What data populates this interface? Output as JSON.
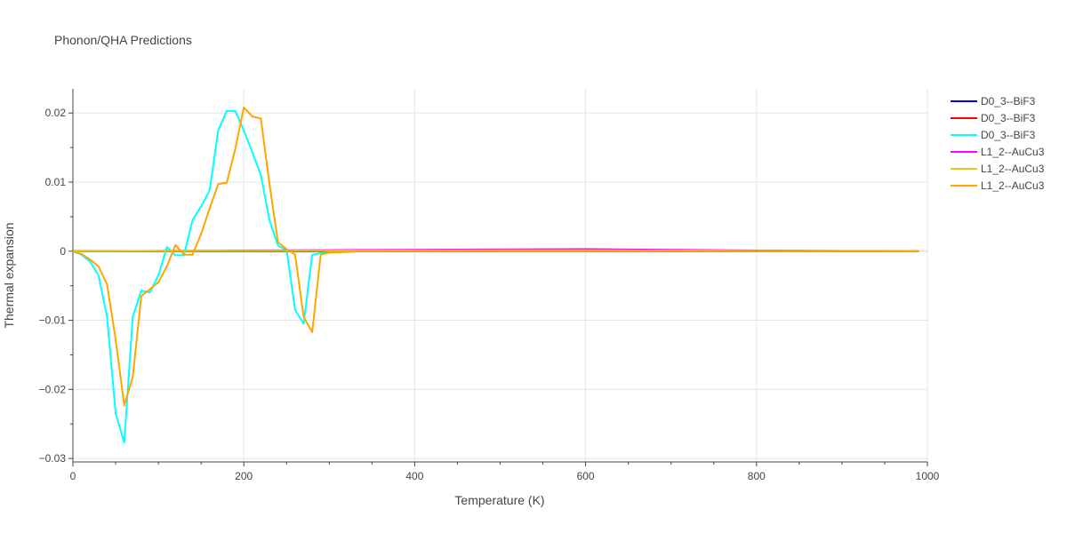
{
  "chart_data": {
    "type": "line",
    "title": "Phonon/QHA Predictions",
    "xlabel": "Temperature (K)",
    "ylabel": "Thermal expansion",
    "xlim": [
      0,
      1000
    ],
    "ylim": [
      -0.0305,
      0.0235
    ],
    "x_ticks": [
      0,
      200,
      400,
      600,
      800,
      1000
    ],
    "x_tick_labels": [
      "0",
      "200",
      "400",
      "600",
      "800",
      "1000"
    ],
    "y_ticks": [
      -0.03,
      -0.02,
      -0.01,
      0,
      0.01,
      0.02
    ],
    "y_tick_labels": [
      "−0.03",
      "−0.02",
      "−0.01",
      "0",
      "0.01",
      "0.02"
    ],
    "grid": true,
    "legend_position": "right",
    "series": [
      {
        "name": "D0_3--BiF3",
        "color": "#0000ff",
        "x": [
          0,
          100,
          200,
          300,
          400,
          500,
          600,
          700,
          800,
          900,
          990
        ],
        "y": [
          0,
          0,
          0,
          0,
          0,
          0,
          0,
          0,
          0,
          0,
          0
        ]
      },
      {
        "name": "D0_3--BiF3",
        "color": "#ff0000",
        "x": [
          0,
          100,
          200,
          300,
          400,
          500,
          600,
          700,
          800,
          900,
          990
        ],
        "y": [
          0,
          0,
          0,
          0,
          0,
          0,
          0,
          0,
          0,
          0,
          0
        ]
      },
      {
        "name": "D0_3--BiF3",
        "color": "#00ffff",
        "x": [
          0,
          10,
          20,
          30,
          40,
          50,
          60,
          70,
          80,
          90,
          100,
          110,
          120,
          130,
          140,
          150,
          160,
          170,
          180,
          190,
          200,
          210,
          220,
          230,
          240,
          250,
          260,
          270,
          280,
          290,
          300,
          320,
          340,
          360,
          400,
          500,
          600,
          700,
          800,
          900,
          990
        ],
        "y": [
          0,
          -0.0005,
          -0.0015,
          -0.0035,
          -0.0095,
          -0.0235,
          -0.0277,
          -0.0095,
          -0.0057,
          -0.006,
          -0.0035,
          0.0006,
          -0.0006,
          -0.0006,
          0.0045,
          0.0065,
          0.0088,
          0.0175,
          0.0203,
          0.0203,
          0.0175,
          0.0143,
          0.011,
          0.0045,
          0.0008,
          0.0002,
          -0.0085,
          -0.0105,
          -0.0005,
          -0.0003,
          -0.0002,
          -0.0001,
          0,
          0,
          0,
          0,
          0,
          0,
          0,
          0,
          0
        ]
      },
      {
        "name": "L1_2--AuCu3",
        "color": "#ff00ff",
        "x": [
          0,
          100,
          200,
          300,
          400,
          500,
          600,
          700,
          800,
          900,
          990
        ],
        "y": [
          0,
          5e-05,
          0.0001,
          0.00015,
          0.0002,
          0.00025,
          0.0003,
          0.0002,
          0.0001,
          5e-05,
          3e-05
        ]
      },
      {
        "name": "L1_2--AuCu3",
        "color": "#e6c619",
        "x": [
          0,
          100,
          200,
          300,
          400,
          500,
          600,
          700,
          800,
          900,
          990
        ],
        "y": [
          0,
          3e-05,
          5e-05,
          8e-05,
          0.0001,
          0.00012,
          0.00012,
          0.0001,
          5e-05,
          3e-05,
          2e-05
        ]
      },
      {
        "name": "L1_2--AuCu3",
        "color": "#ffa500",
        "x": [
          0,
          10,
          20,
          30,
          40,
          50,
          60,
          70,
          80,
          90,
          100,
          110,
          120,
          130,
          140,
          150,
          160,
          170,
          180,
          190,
          200,
          210,
          220,
          230,
          240,
          250,
          260,
          270,
          280,
          290,
          300,
          320,
          340,
          360,
          400,
          500,
          600,
          700,
          800,
          900,
          990
        ],
        "y": [
          0,
          -0.0004,
          -0.0012,
          -0.0022,
          -0.0048,
          -0.0128,
          -0.0223,
          -0.0182,
          -0.0065,
          -0.0055,
          -0.0045,
          -0.0022,
          0.0009,
          -0.0005,
          -0.0005,
          0.0025,
          0.0062,
          0.0097,
          0.0099,
          0.0148,
          0.0208,
          0.0195,
          0.0192,
          0.0098,
          0.0013,
          0.0003,
          -0.0005,
          -0.0095,
          -0.0117,
          -0.0005,
          -0.0002,
          -0.0001,
          0,
          0,
          0,
          0,
          0,
          0,
          0,
          0,
          0
        ]
      }
    ]
  }
}
